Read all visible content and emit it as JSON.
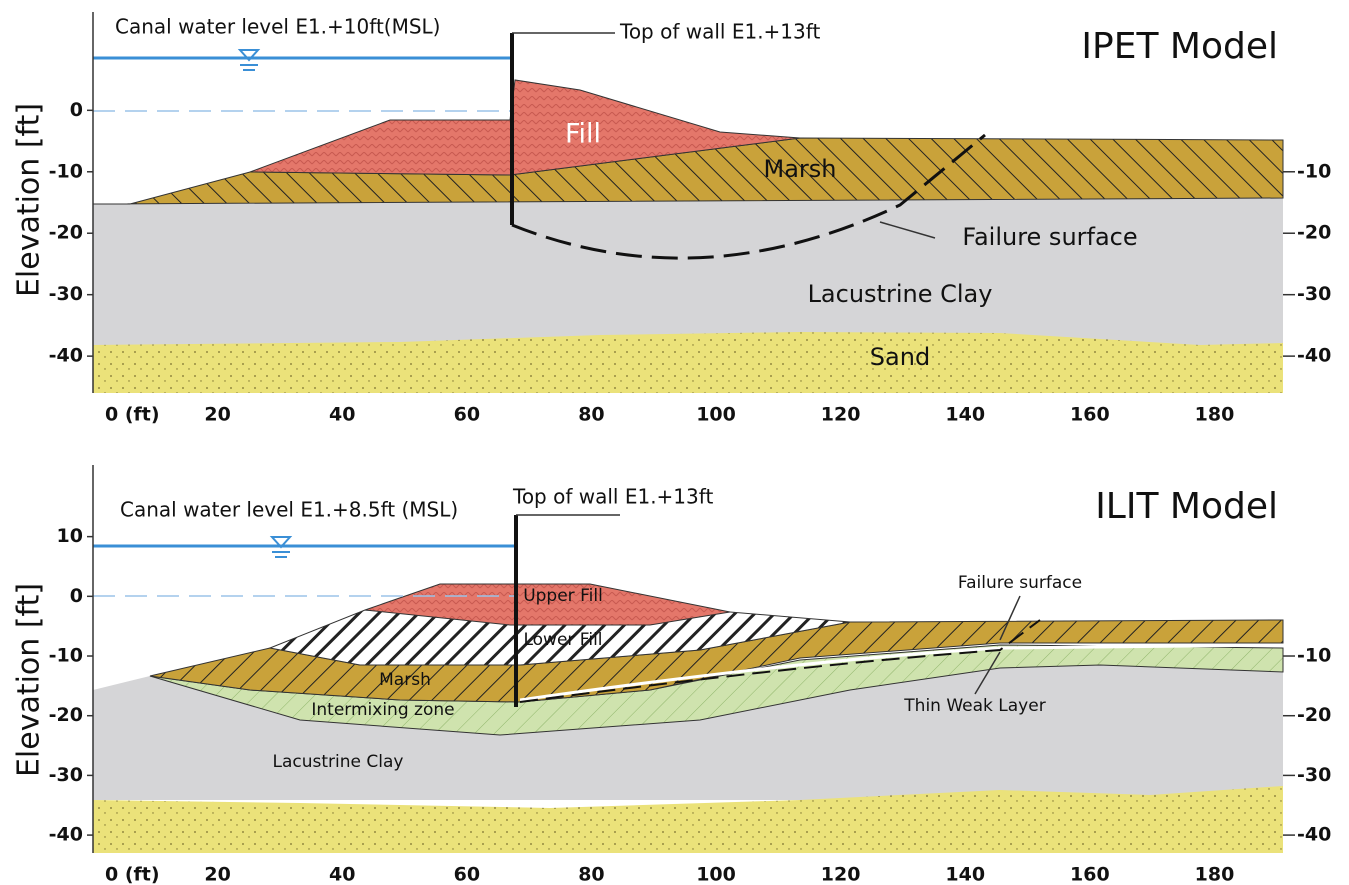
{
  "panels": [
    {
      "title": "IPET Model",
      "y_label": "Elevation [ft]",
      "water_label": "Canal water level E1.+10ft(MSL)",
      "wall_label": "Top of wall E1.+13ft",
      "layer_labels": [
        "Fill",
        "Marsh",
        "Failure surface",
        "Lacustrine Clay",
        "Sand"
      ],
      "xlim": [
        0,
        191
      ],
      "ylim": [
        -46,
        16
      ],
      "xticks": [
        {
          "value": 0,
          "label": "0 (ft)"
        },
        20,
        40,
        60,
        80,
        100,
        120,
        140,
        160,
        180
      ],
      "yticks": [
        0,
        -10,
        -20,
        -30,
        -40
      ],
      "y2ticks": [
        -10,
        -20,
        -30,
        -40
      ]
    },
    {
      "title": "ILIT Model",
      "y_label": "Elevation [ft]",
      "water_label": "Canal water level E1.+8.5ft (MSL)",
      "wall_label": "Top of wall E1.+13ft",
      "layer_labels": [
        "Upper Fill",
        "Lower Fill",
        "Marsh",
        "Intermixing zone",
        "Lacustrine Clay",
        "Failure surface",
        "Thin Weak Layer"
      ],
      "xlim": [
        0,
        191
      ],
      "ylim": [
        -43,
        22
      ],
      "xticks": [
        {
          "value": 0,
          "label": "0 (ft)"
        },
        20,
        40,
        60,
        80,
        100,
        120,
        140,
        160,
        180
      ],
      "yticks": [
        10,
        0,
        -10,
        -20,
        -30,
        -40
      ],
      "y2ticks": [
        -10,
        -20,
        -30,
        -40
      ]
    }
  ]
}
